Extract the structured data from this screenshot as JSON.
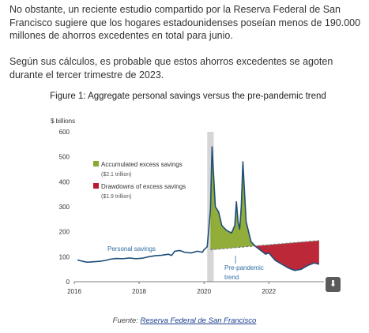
{
  "article": {
    "paragraph1": "No obstante, un reciente estudio compartido por la Reserva Federal de San Francisco sugiere que los hogares estadounidenses poseían menos de 190.000 millones de ahorros excedentes en total para junio.",
    "paragraph2": "Según sus cálculos, es probable que estos ahorros excedentes se agoten durante el tercer trimestre de 2023."
  },
  "caption": {
    "prefix": "Fuente: ",
    "link_text": "Reserva Federal de San Francisco"
  },
  "download_icon": "download-icon",
  "chart_data": {
    "type": "line",
    "title": "Figure 1: Aggregate personal savings versus the pre-pandemic trend",
    "ylabel": "$ billions",
    "xlabel": "",
    "ylim": [
      0,
      600
    ],
    "xlim": [
      2016,
      2023.7
    ],
    "yticks": [
      "0",
      "100",
      "200",
      "300",
      "400",
      "500",
      "600"
    ],
    "xticks": [
      "2016",
      "2018",
      "2020",
      "2022"
    ],
    "grid": false,
    "legend_position": "top-left",
    "legend": [
      {
        "label": "Accumulated excess savings",
        "sub": "($2.1 trillion)",
        "color": "#8aaa2e"
      },
      {
        "label": "Drawdowns of excess savings",
        "sub": "($1.9 trillion)",
        "color": "#b81c2c"
      }
    ],
    "annotations": {
      "personal_savings": "Personal savings",
      "trend_line1": "Pre-pandemic",
      "trend_line2": "trend"
    },
    "recession_shading": [
      2020.1,
      2020.3
    ],
    "series": [
      {
        "name": "Personal savings",
        "color": "#1f4e79",
        "x": [
          2016.1,
          2016.25,
          2016.4,
          2016.6,
          2016.8,
          2017.0,
          2017.1,
          2017.3,
          2017.5,
          2017.7,
          2017.9,
          2018.1,
          2018.3,
          2018.5,
          2018.7,
          2018.9,
          2019.0,
          2019.1,
          2019.25,
          2019.4,
          2019.6,
          2019.8,
          2019.95,
          2020.0,
          2020.1,
          2020.2,
          2020.25,
          2020.3,
          2020.35,
          2020.45,
          2020.55,
          2020.7,
          2020.85,
          2020.95,
          2021.0,
          2021.05,
          2021.1,
          2021.15,
          2021.2,
          2021.3,
          2021.45,
          2021.6,
          2021.75,
          2021.9,
          2022.0,
          2022.2,
          2022.4,
          2022.6,
          2022.8,
          2023.0,
          2023.2,
          2023.4,
          2023.55
        ],
        "y": [
          87,
          82,
          78,
          80,
          82,
          86,
          90,
          93,
          92,
          95,
          92,
          94,
          100,
          104,
          106,
          110,
          105,
          122,
          125,
          118,
          115,
          122,
          118,
          128,
          140,
          290,
          540,
          420,
          300,
          280,
          225,
          205,
          195,
          225,
          320,
          240,
          210,
          300,
          480,
          240,
          160,
          140,
          125,
          110,
          115,
          85,
          70,
          55,
          45,
          50,
          65,
          75,
          70
        ]
      },
      {
        "name": "Pre-pandemic trend",
        "color": "#7a7a7a",
        "x": [
          2020.2,
          2023.6
        ],
        "y": [
          128,
          165
        ]
      }
    ]
  }
}
